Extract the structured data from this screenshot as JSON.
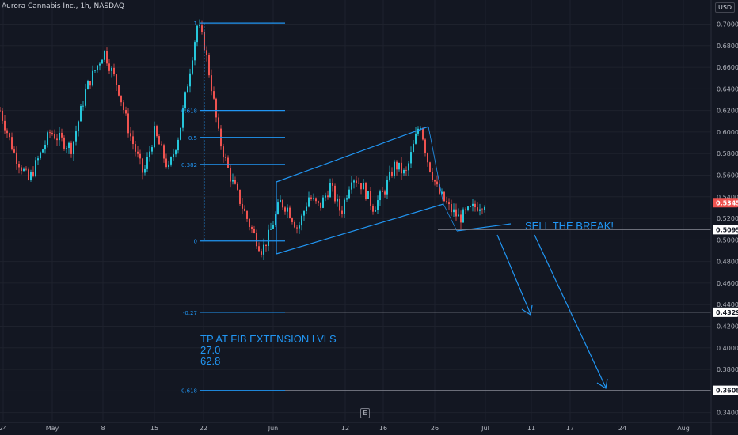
{
  "header": {
    "title": "Aurora Cannabis Inc., 1h, NASDAQ",
    "currency": "USD"
  },
  "chart_data": {
    "type": "candlestick",
    "symbol": "Aurora Cannabis Inc.",
    "interval": "1h",
    "exchange": "NASDAQ",
    "ylim": [
      0.33,
      0.72
    ],
    "y_ticks": [
      "0.7000",
      "0.6800",
      "0.6600",
      "0.6400",
      "0.6200",
      "0.6000",
      "0.5800",
      "0.5600",
      "0.5400",
      "0.5200",
      "0.5000",
      "0.4800",
      "0.4600",
      "0.4400",
      "0.4200",
      "0.4000",
      "0.3800",
      "0.3600",
      "0.3400"
    ],
    "x_ticks": [
      "24",
      "May",
      "8",
      "15",
      "22",
      "Jun",
      "12",
      "16",
      "26",
      "Jul",
      "11",
      "17",
      "24",
      "Aug"
    ],
    "price_path": [
      [
        0,
        0.62
      ],
      [
        0.02,
        0.58
      ],
      [
        0.04,
        0.555
      ],
      [
        0.07,
        0.6
      ],
      [
        0.1,
        0.585
      ],
      [
        0.12,
        0.64
      ],
      [
        0.145,
        0.675
      ],
      [
        0.165,
        0.64
      ],
      [
        0.18,
        0.6
      ],
      [
        0.2,
        0.56
      ],
      [
        0.215,
        0.6
      ],
      [
        0.235,
        0.565
      ],
      [
        0.25,
        0.6
      ],
      [
        0.26,
        0.64
      ],
      [
        0.275,
        0.7
      ],
      [
        0.285,
        0.68
      ],
      [
        0.295,
        0.64
      ],
      [
        0.305,
        0.595
      ],
      [
        0.32,
        0.56
      ],
      [
        0.335,
        0.535
      ],
      [
        0.35,
        0.51
      ],
      [
        0.365,
        0.49
      ],
      [
        0.375,
        0.505
      ],
      [
        0.39,
        0.535
      ],
      [
        0.4,
        0.53
      ],
      [
        0.415,
        0.51
      ],
      [
        0.43,
        0.54
      ],
      [
        0.445,
        0.53
      ],
      [
        0.46,
        0.55
      ],
      [
        0.475,
        0.525
      ],
      [
        0.49,
        0.56
      ],
      [
        0.505,
        0.55
      ],
      [
        0.52,
        0.53
      ],
      [
        0.535,
        0.545
      ],
      [
        0.55,
        0.57
      ],
      [
        0.565,
        0.56
      ],
      [
        0.585,
        0.61
      ],
      [
        0.595,
        0.575
      ],
      [
        0.61,
        0.545
      ],
      [
        0.625,
        0.53
      ],
      [
        0.64,
        0.52
      ],
      [
        0.66,
        0.53
      ],
      [
        0.675,
        0.535
      ]
    ],
    "last_price": 0.5345,
    "price_labels": [
      {
        "text": "0.5345",
        "value": 0.5345,
        "role": "last"
      },
      {
        "text": "0.5095",
        "value": 0.5095
      },
      {
        "text": "0.4329",
        "value": 0.4329
      },
      {
        "text": "0.3605",
        "value": 0.3605
      }
    ],
    "fib_levels": [
      {
        "label": "1",
        "value": 0.701
      },
      {
        "label": "0.618",
        "value": 0.62
      },
      {
        "label": "0.5",
        "value": 0.595
      },
      {
        "label": "0.382",
        "value": 0.57
      },
      {
        "label": "0",
        "value": 0.499
      },
      {
        "label": "-0.27",
        "value": 0.4329
      },
      {
        "label": "-0.618",
        "value": 0.3605
      }
    ],
    "horizontal_lines": [
      0.5095,
      0.4329,
      0.3605
    ],
    "annotations": [
      {
        "text": "SELL THE BREAK!"
      },
      {
        "lines": [
          "TP AT FIB EXTENSION LVLS",
          "27.0",
          "62.8"
        ]
      }
    ]
  },
  "colors": {
    "background": "#131722",
    "grid": "#1e222d",
    "axis_text": "#b2b5be",
    "candle_up": "#26c6da",
    "candle_down": "#ef5350",
    "drawing": "#2196f3",
    "hline": "#434651",
    "last_price_tag": "#ef5350",
    "level_tag": "#ffffff"
  }
}
